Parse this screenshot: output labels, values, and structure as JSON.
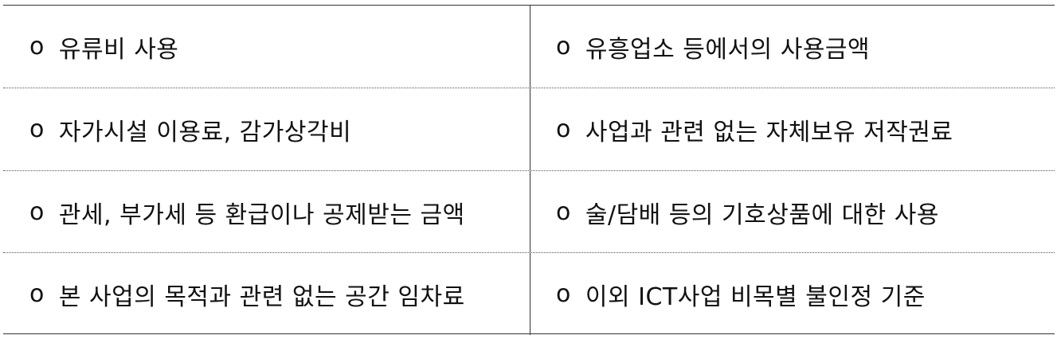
{
  "rows": [
    {
      "left": "유류비 사용",
      "right": "유흥업소 등에서의 사용금액"
    },
    {
      "left": "자가시설 이용료, 감가상각비",
      "right": "사업과 관련 없는 자체보유 저작권료"
    },
    {
      "left": "관세, 부가세 등 환급이나 공제받는 금액",
      "right": "술/담배 등의 기호상품에 대한 사용"
    },
    {
      "left": "본 사업의 목적과 관련 없는 공간 임차료",
      "right": "이외 ICT사업 비목별 불인정 기준"
    }
  ],
  "bullet": "o"
}
